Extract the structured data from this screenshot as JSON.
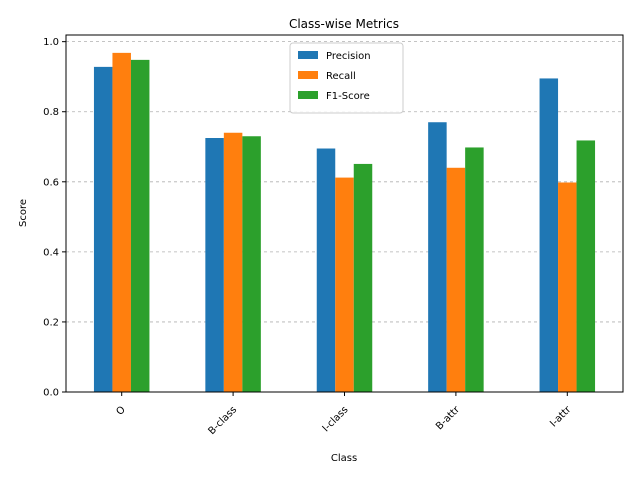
{
  "chart_data": {
    "type": "bar",
    "title": "Class-wise Metrics",
    "xlabel": "Class",
    "ylabel": "Score",
    "categories": [
      "O",
      "B-class",
      "I-class",
      "B-attr",
      "I-attr"
    ],
    "series": [
      {
        "name": "Precision",
        "color": "#1f77b4",
        "values": [
          0.928,
          0.725,
          0.695,
          0.77,
          0.895
        ]
      },
      {
        "name": "Recall",
        "color": "#ff7f0e",
        "values": [
          0.968,
          0.74,
          0.612,
          0.64,
          0.598
        ]
      },
      {
        "name": "F1-Score",
        "color": "#2ca02c",
        "values": [
          0.948,
          0.73,
          0.651,
          0.698,
          0.718
        ]
      }
    ],
    "ylim": [
      0,
      1.0
    ],
    "yticks": [
      "0.0",
      "0.2",
      "0.4",
      "0.6",
      "0.8",
      "1.0"
    ],
    "grid": "y-dashed",
    "legend_position": "top-center",
    "xtick_rotation": 45
  }
}
